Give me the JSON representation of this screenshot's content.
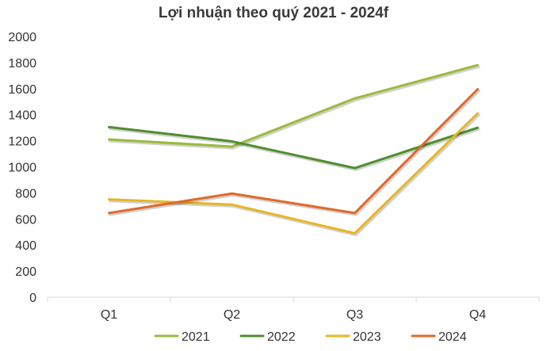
{
  "chart_data": {
    "type": "line",
    "title": "Lợi nhuận theo quý 2021 - 2024f",
    "categories": [
      "Q1",
      "Q2",
      "Q3",
      "Q4"
    ],
    "ylim": [
      0,
      2000
    ],
    "yticks": [
      0,
      200,
      400,
      600,
      800,
      1000,
      1200,
      1400,
      1600,
      1800,
      2000
    ],
    "xlabel": "",
    "ylabel": "",
    "grid": false,
    "legend_position": "bottom",
    "series": [
      {
        "name": "2021",
        "color": "#9BBB3B",
        "values": [
          1210,
          1155,
          1525,
          1780
        ]
      },
      {
        "name": "2022",
        "color": "#4E8F2C",
        "values": [
          1305,
          1195,
          990,
          1300
        ]
      },
      {
        "name": "2023",
        "color": "#E8B623",
        "values": [
          750,
          710,
          490,
          1410
        ]
      },
      {
        "name": "2024",
        "color": "#E0692A",
        "values": [
          645,
          795,
          645,
          1595
        ]
      }
    ]
  }
}
